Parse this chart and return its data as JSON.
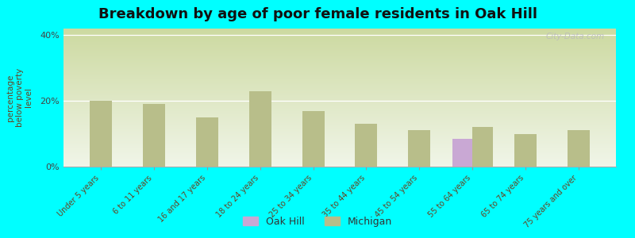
{
  "title": "Breakdown by age of poor female residents in Oak Hill",
  "ylabel": "percentage\nbelow poverty\nlevel",
  "background_color": "#00FFFF",
  "plot_bg_top": "#ccd9a0",
  "plot_bg_bottom": "#f0f5e8",
  "categories": [
    "Under 5 years",
    "6 to 11 years",
    "16 and 17 years",
    "18 to 24 years",
    "25 to 34 years",
    "35 to 44 years",
    "45 to 54 years",
    "55 to 64 years",
    "65 to 74 years",
    "75 years and over"
  ],
  "michigan_values": [
    20.0,
    19.0,
    15.0,
    23.0,
    17.0,
    13.0,
    11.0,
    12.0,
    10.0,
    11.0
  ],
  "oakhill_values": [
    null,
    null,
    null,
    null,
    null,
    null,
    null,
    8.5,
    null,
    null
  ],
  "michigan_color": "#b8be8a",
  "oakhill_color": "#c9a8d4",
  "legend_oakhill": "Oak Hill",
  "legend_michigan": "Michigan",
  "ylim": [
    0,
    42
  ],
  "yticks": [
    0,
    20,
    40
  ],
  "ytick_labels": [
    "0%",
    "20%",
    "40%"
  ],
  "bar_width": 0.38,
  "title_fontsize": 13,
  "axis_label_fontsize": 7.5,
  "tick_fontsize": 7,
  "watermark": "City-Data.com"
}
